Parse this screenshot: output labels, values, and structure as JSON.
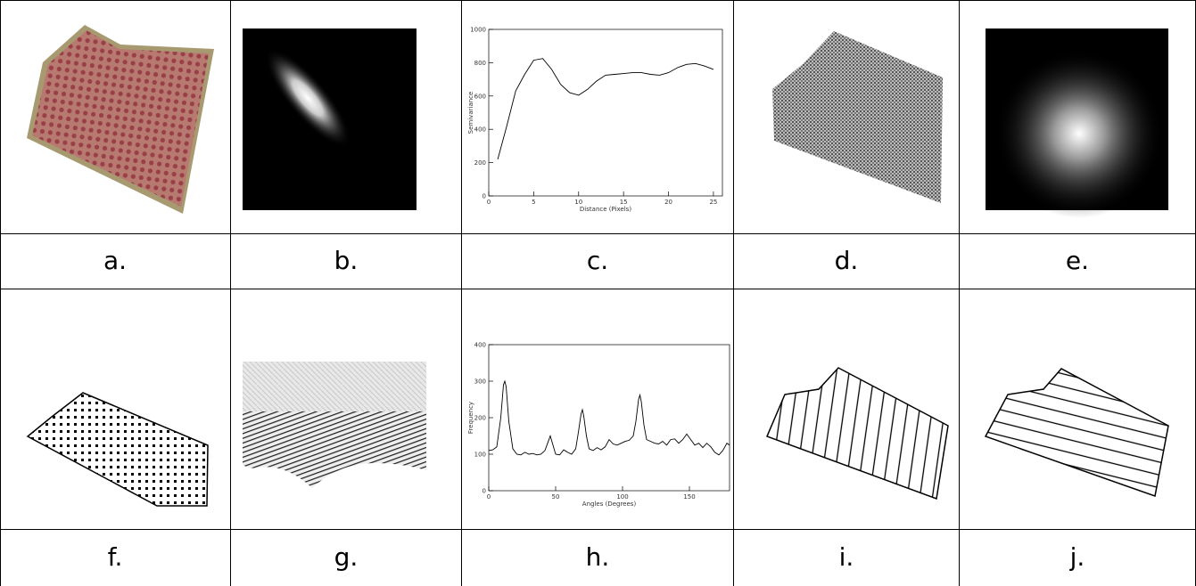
{
  "captions": [
    "a.",
    "b.",
    "c.",
    "d.",
    "e.",
    "f.",
    "g.",
    "h.",
    "i.",
    "j."
  ],
  "chart_data": [
    {
      "type": "line",
      "x_label": "Distance (Pixels)",
      "y_label": "Semivariance",
      "color": "#000000",
      "x": [
        1,
        2,
        3,
        4,
        5,
        6,
        7,
        8,
        9,
        10,
        11,
        12,
        13,
        14,
        15,
        16,
        17,
        18,
        19,
        20,
        21,
        22,
        23,
        24,
        25
      ],
      "values": [
        220,
        420,
        630,
        730,
        815,
        825,
        760,
        670,
        620,
        605,
        640,
        690,
        725,
        730,
        735,
        740,
        740,
        730,
        725,
        740,
        770,
        790,
        795,
        780,
        760
      ],
      "xlim": [
        0,
        26
      ],
      "xticks": [
        0,
        5,
        10,
        15,
        20,
        25
      ],
      "ylim": [
        0,
        1000
      ],
      "yticks": [
        0,
        200,
        400,
        600,
        800,
        1000
      ]
    },
    {
      "type": "line",
      "x_label": "Angles (Degrees)",
      "y_label": "Frequency",
      "color": "#000000",
      "x": [
        0,
        3,
        6,
        9,
        11,
        12,
        13,
        15,
        18,
        21,
        24,
        27,
        30,
        33,
        36,
        39,
        42,
        44,
        46,
        48,
        50,
        53,
        56,
        59,
        62,
        65,
        67,
        69,
        70,
        71,
        73,
        75,
        78,
        81,
        84,
        87,
        90,
        93,
        96,
        99,
        102,
        105,
        108,
        110,
        112,
        113,
        114,
        116,
        118,
        121,
        124,
        127,
        130,
        133,
        136,
        139,
        142,
        145,
        148,
        151,
        154,
        157,
        160,
        163,
        166,
        169,
        172,
        175,
        178,
        180
      ],
      "values": [
        110,
        112,
        120,
        200,
        290,
        300,
        285,
        190,
        115,
        100,
        98,
        105,
        100,
        102,
        98,
        100,
        110,
        130,
        150,
        125,
        100,
        98,
        112,
        105,
        100,
        115,
        160,
        210,
        222,
        205,
        150,
        115,
        110,
        118,
        112,
        120,
        140,
        128,
        125,
        130,
        135,
        138,
        150,
        190,
        250,
        262,
        245,
        180,
        140,
        135,
        130,
        128,
        135,
        125,
        140,
        142,
        130,
        140,
        155,
        140,
        125,
        130,
        118,
        130,
        120,
        105,
        98,
        110,
        130,
        125
      ],
      "xlim": [
        0,
        180
      ],
      "xticks": [
        0,
        50,
        100,
        150
      ],
      "ylim": [
        0,
        400
      ],
      "yticks": [
        0,
        100,
        200,
        300,
        400
      ]
    }
  ]
}
